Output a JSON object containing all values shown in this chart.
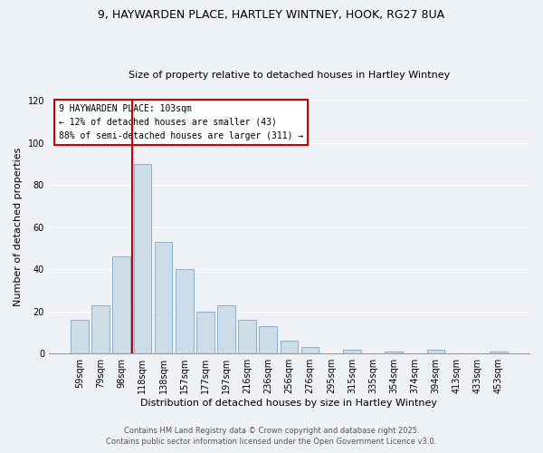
{
  "title_line1": "9, HAYWARDEN PLACE, HARTLEY WINTNEY, HOOK, RG27 8UA",
  "title_line2": "Size of property relative to detached houses in Hartley Wintney",
  "xlabel": "Distribution of detached houses by size in Hartley Wintney",
  "ylabel": "Number of detached properties",
  "bar_labels": [
    "59sqm",
    "79sqm",
    "98sqm",
    "118sqm",
    "138sqm",
    "157sqm",
    "177sqm",
    "197sqm",
    "216sqm",
    "236sqm",
    "256sqm",
    "276sqm",
    "295sqm",
    "315sqm",
    "335sqm",
    "354sqm",
    "374sqm",
    "394sqm",
    "413sqm",
    "433sqm",
    "453sqm"
  ],
  "bar_values": [
    16,
    23,
    46,
    90,
    53,
    40,
    20,
    23,
    16,
    13,
    6,
    3,
    0,
    2,
    0,
    1,
    0,
    2,
    0,
    0,
    1
  ],
  "bar_color": "#ccdde8",
  "bar_edge_color": "#8ab0cc",
  "background_color": "#eef2f7",
  "grid_color": "#ffffff",
  "ylim": [
    0,
    120
  ],
  "yticks": [
    0,
    20,
    40,
    60,
    80,
    100,
    120
  ],
  "property_label": "9 HAYWARDEN PLACE: 103sqm",
  "annotation_line1": "← 12% of detached houses are smaller (43)",
  "annotation_line2": "88% of semi-detached houses are larger (311) →",
  "box_facecolor": "#ffffff",
  "box_edgecolor": "#cc0000",
  "property_line_color": "#cc0000",
  "footer1": "Contains HM Land Registry data © Crown copyright and database right 2025.",
  "footer2": "Contains public sector information licensed under the Open Government Licence v3.0.",
  "title1_fontsize": 9,
  "title2_fontsize": 8,
  "xlabel_fontsize": 8,
  "ylabel_fontsize": 8,
  "tick_fontsize": 7,
  "annot_fontsize": 7,
  "footer_fontsize": 6
}
